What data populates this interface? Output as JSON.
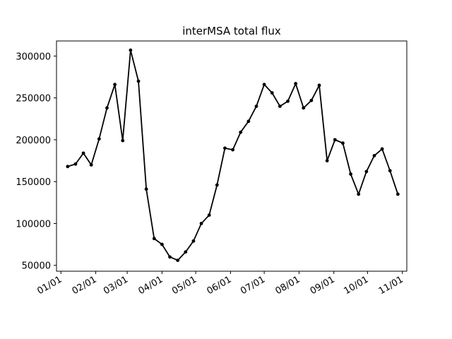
{
  "chart_data": {
    "type": "line",
    "title": "interMSA total flux",
    "xlabel": "",
    "ylabel": "",
    "x_tick_labels": [
      "01/01",
      "02/01",
      "03/01",
      "04/01",
      "05/01",
      "06/01",
      "07/01",
      "08/01",
      "09/01",
      "10/01",
      "11/01"
    ],
    "y_tick_labels": [
      "50000",
      "100000",
      "150000",
      "200000",
      "250000",
      "300000"
    ],
    "y_ticks": [
      50000,
      100000,
      150000,
      200000,
      250000,
      300000
    ],
    "ylim": [
      43000,
      318000
    ],
    "grid": false,
    "line_color": "#000000",
    "series": [
      {
        "x": [
          "01/07",
          "01/14",
          "01/21",
          "01/28",
          "02/04",
          "02/11",
          "02/18",
          "02/25",
          "03/04",
          "03/11",
          "03/18",
          "03/25",
          "04/01",
          "04/08",
          "04/15",
          "04/22",
          "04/29",
          "05/06",
          "05/13",
          "05/20",
          "05/27",
          "06/03",
          "06/10",
          "06/17",
          "06/24",
          "07/01",
          "07/08",
          "07/15",
          "07/22",
          "07/29",
          "08/05",
          "08/12",
          "08/19",
          "08/26",
          "09/02",
          "09/09",
          "09/16",
          "09/23",
          "09/30",
          "10/07",
          "10/14",
          "10/21",
          "10/28"
        ],
        "values": [
          168000,
          171000,
          184000,
          170000,
          201000,
          238000,
          266000,
          199000,
          307000,
          270000,
          141000,
          82000,
          75000,
          60000,
          56000,
          66000,
          79000,
          100000,
          110000,
          146000,
          190000,
          188000,
          209000,
          222000,
          240000,
          266000,
          256000,
          240000,
          246000,
          267000,
          238000,
          247000,
          265000,
          175000,
          200000,
          196000,
          159000,
          135000,
          162000,
          181000,
          189000,
          163000,
          135000
        ]
      }
    ]
  }
}
